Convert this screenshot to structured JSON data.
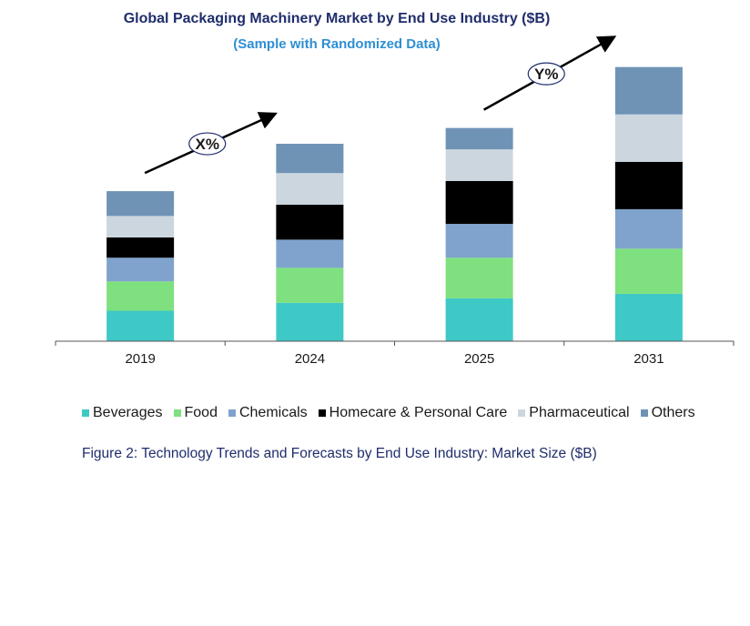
{
  "header": {
    "title": "Global Packaging Machinery Market by End Use Industry ($B)",
    "subtitle": "(Sample with Randomized Data)"
  },
  "caption": "Figure 2: Technology  Trends  and Forecasts by End Use Industry:  Market Size ($B)",
  "chart_data": {
    "type": "bar",
    "stacked": true,
    "title": "Global Packaging Machinery Market by End Use Industry ($B)",
    "subtitle": "(Sample with Randomized Data)",
    "categories": [
      "2019",
      "2024",
      "2025",
      "2031"
    ],
    "series": [
      {
        "name": "Beverages",
        "color": "#3ec9c6",
        "values": [
          27,
          34,
          38,
          42
        ]
      },
      {
        "name": "Food",
        "color": "#7ee07e",
        "values": [
          26,
          31,
          36,
          40
        ]
      },
      {
        "name": "Chemicals",
        "color": "#7fa3cc",
        "values": [
          21,
          25,
          30,
          35
        ]
      },
      {
        "name": "Homecare & Personal Care",
        "color": "#000000",
        "values": [
          18,
          31,
          38,
          42
        ]
      },
      {
        "name": "Pharmaceutical",
        "color": "#ccd6df",
        "values": [
          19,
          28,
          28,
          42
        ]
      },
      {
        "name": "Others",
        "color": "#6f93b5",
        "values": [
          22,
          26,
          19,
          42
        ]
      }
    ],
    "ylim": [
      0,
      250
    ],
    "grid": false,
    "legend_position": "bottom",
    "annotations": [
      {
        "label": "X%",
        "from_category": "2019",
        "to_category": "2024"
      },
      {
        "label": "Y%",
        "from_category": "2025",
        "to_category": "2031"
      }
    ]
  }
}
